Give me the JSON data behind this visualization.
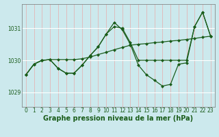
{
  "title": "Graphe pression niveau de la mer (hPa)",
  "background_color": "#cce9ed",
  "grid_color_v": "#e8aaaa",
  "grid_color_h": "#ffffff",
  "line_color": "#1a5c1a",
  "x_labels": [
    "0",
    "1",
    "2",
    "3",
    "4",
    "5",
    "6",
    "7",
    "8",
    "9",
    "10",
    "11",
    "12",
    "13",
    "14",
    "15",
    "16",
    "17",
    "18",
    "19",
    "20",
    "21",
    "22",
    "23"
  ],
  "yticks": [
    1029,
    1030,
    1031
  ],
  "ylim": [
    1028.55,
    1031.75
  ],
  "xlim": [
    -0.5,
    23.5
  ],
  "series1_y": [
    1029.55,
    1029.88,
    1030.0,
    1030.02,
    1030.02,
    1030.02,
    1030.02,
    1030.05,
    1030.1,
    1030.18,
    1030.25,
    1030.33,
    1030.4,
    1030.47,
    1030.5,
    1030.52,
    1030.55,
    1030.57,
    1030.6,
    1030.62,
    1030.65,
    1030.68,
    1030.72,
    1030.75
  ],
  "series2_y": [
    1029.55,
    1029.88,
    1030.0,
    1030.02,
    1029.75,
    1029.6,
    1029.6,
    1029.85,
    1030.15,
    1030.42,
    1030.82,
    1031.05,
    1031.0,
    1030.55,
    1030.0,
    1030.0,
    1030.0,
    1030.0,
    1030.0,
    1030.0,
    1030.0,
    1031.05,
    1031.5,
    1030.75
  ],
  "series3_y": [
    1029.55,
    1029.88,
    1030.0,
    1030.02,
    1029.75,
    1029.6,
    1029.6,
    1029.85,
    1030.15,
    1030.42,
    1030.82,
    1031.18,
    1030.95,
    1030.5,
    1029.85,
    1029.55,
    1029.38,
    1029.2,
    1029.25,
    1029.88,
    1029.92,
    1031.05,
    1031.5,
    1030.75
  ],
  "marker_size": 2.5,
  "line_width": 0.9,
  "title_fontsize": 7,
  "tick_fontsize": 5.5
}
